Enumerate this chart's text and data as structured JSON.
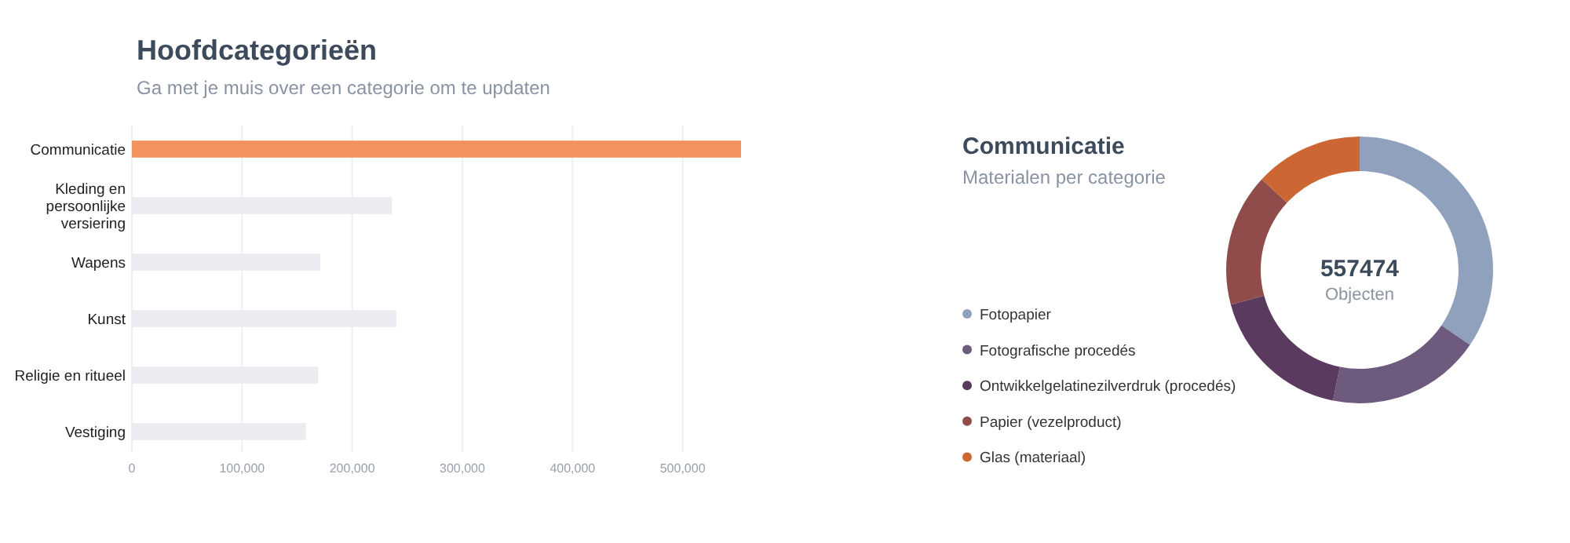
{
  "chart_data": [
    {
      "type": "bar",
      "orientation": "horizontal",
      "title": "Hoofdcategorieën",
      "subtitle": "Ga met je muis over een categorie om te updaten",
      "categories": [
        "Communicatie",
        "Kleding en persoonlijke versiering",
        "Wapens",
        "Kunst",
        "Religie en ritueel",
        "Vestiging"
      ],
      "values": [
        553000,
        236000,
        171000,
        240000,
        169000,
        158000
      ],
      "colors": [
        "#f4925e",
        "#ebecf2",
        "#ebecf2",
        "#ebecf2",
        "#ebecf2",
        "#ebecf2"
      ],
      "xlim": [
        0,
        553000
      ],
      "xticks": [
        0,
        {
          "value": 100000,
          "label": "100,000"
        },
        {
          "value": 200000,
          "label": "200,000"
        },
        {
          "value": 300000,
          "label": "300,000"
        },
        {
          "value": 400000,
          "label": "400,000"
        },
        {
          "value": 500000,
          "label": "500,000"
        }
      ],
      "grid": "x"
    },
    {
      "type": "donut",
      "title": "Communicatie",
      "subtitle": "Materialen per categorie",
      "categories": [
        "Fotopapier",
        "Fotografische procedés",
        "Ontwikkelgelatinezilverdruk (procedés)",
        "Papier (vezelproduct)",
        "Glas (materiaal)"
      ],
      "values": [
        34.5,
        18.7,
        17.6,
        16.1,
        13.1
      ],
      "colors": [
        "#8fa1bd",
        "#6e5a7c",
        "#5a3a5e",
        "#8f4c4a",
        "#cc6633"
      ],
      "annotations": [
        "557474",
        "Objecten"
      ],
      "legend": "left"
    }
  ]
}
